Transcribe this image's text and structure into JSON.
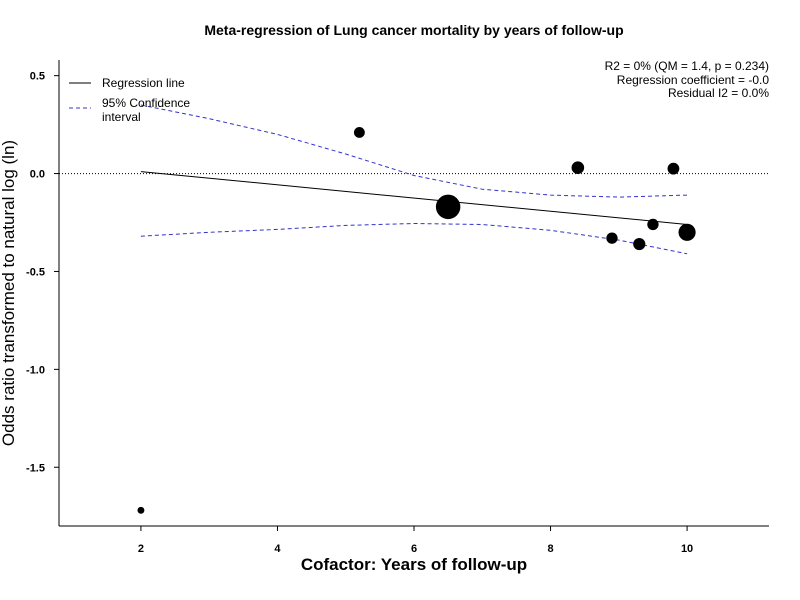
{
  "chart_data": {
    "type": "scatter",
    "title": "Meta-regression of  Lung cancer mortality by years of follow-up",
    "xlabel": "Cofactor:  Years of follow-up",
    "ylabel": "Odds ratio transformed to natural log (ln)",
    "xlim": [
      0.8,
      11.2
    ],
    "ylim": [
      -1.8,
      0.58
    ],
    "x_ticks": [
      2,
      4,
      6,
      8,
      10
    ],
    "x_tick_labels": [
      "2",
      "4",
      "6",
      "8",
      "10"
    ],
    "y_ticks": [
      0.5,
      0.0,
      -0.5,
      -1.0,
      -1.5
    ],
    "y_tick_labels": [
      "0.5",
      "0.0",
      "-0.5",
      "-1.0",
      "-1.5"
    ],
    "reference_line_y": 0.0,
    "points": [
      {
        "x": 2.0,
        "y": -1.72,
        "weight": 0.1
      },
      {
        "x": 5.2,
        "y": 0.21,
        "weight": 0.4
      },
      {
        "x": 6.5,
        "y": -0.17,
        "weight": 3.0
      },
      {
        "x": 8.4,
        "y": 0.03,
        "weight": 0.6
      },
      {
        "x": 8.9,
        "y": -0.33,
        "weight": 0.45
      },
      {
        "x": 9.3,
        "y": -0.36,
        "weight": 0.55
      },
      {
        "x": 9.5,
        "y": -0.26,
        "weight": 0.45
      },
      {
        "x": 9.8,
        "y": 0.025,
        "weight": 0.5
      },
      {
        "x": 10.0,
        "y": -0.3,
        "weight": 1.3
      }
    ],
    "regression_line": {
      "x": [
        2,
        10
      ],
      "y": [
        0.01,
        -0.26
      ]
    },
    "ci_upper": {
      "x": [
        2,
        3,
        4,
        5,
        6,
        7,
        8,
        9,
        10
      ],
      "y": [
        0.35,
        0.28,
        0.2,
        0.1,
        -0.01,
        -0.08,
        -0.11,
        -0.12,
        -0.11
      ]
    },
    "ci_lower": {
      "x": [
        2,
        3,
        4,
        5,
        6,
        7,
        8,
        9,
        10
      ],
      "y": [
        -0.32,
        -0.3,
        -0.285,
        -0.265,
        -0.255,
        -0.26,
        -0.29,
        -0.34,
        -0.41
      ]
    },
    "legend": {
      "placement": "top-left",
      "entries": [
        {
          "label": "Regression line",
          "style": "solid",
          "color": "#000000"
        },
        {
          "label_lines": [
            "95% Confidence",
            "interval"
          ],
          "style": "dashed",
          "color": "#3333cc"
        }
      ]
    },
    "stats": [
      "R2 = 0% (QM = 1.4, p = 0.234)",
      "Regression coefficient = -0.0",
      "Residual I2 = 0.0%"
    ],
    "colors": {
      "points": "#000000",
      "regression": "#000000",
      "ci": "#3333cc",
      "reference": "#000000"
    }
  }
}
